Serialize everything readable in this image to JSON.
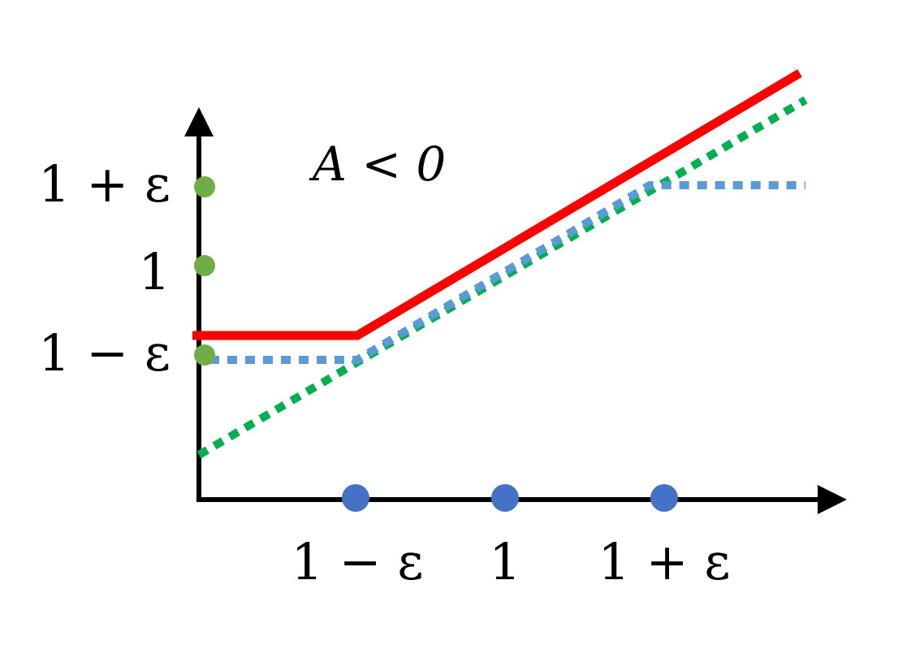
{
  "condition_label": "A < 0",
  "y_axis_labels": [
    "1 + ε",
    "1",
    "1 − ε"
  ],
  "x_axis_labels": [
    "1 − ε",
    "1",
    "1 + ε"
  ],
  "colors": {
    "axis": "#000000",
    "red_line": "#ff0000",
    "blue_dotted": "#5b9bd5",
    "green_dotted": "#00b050",
    "y_markers": "#70ad47",
    "x_markers": "#4472c4"
  }
}
